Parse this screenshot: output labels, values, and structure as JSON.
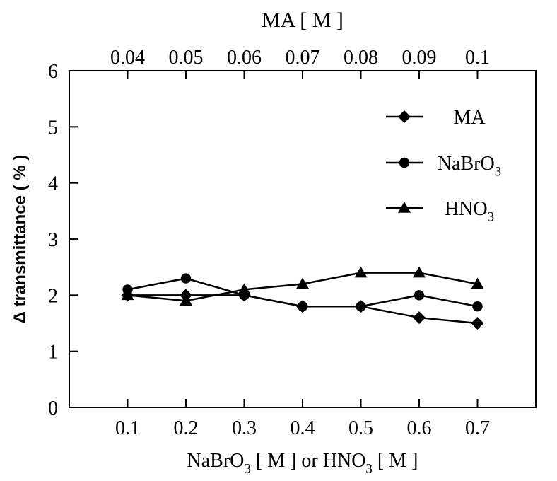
{
  "chart_data": {
    "type": "line",
    "title": "",
    "xlabel": {
      "parts": [
        {
          "text": "NaBrO",
          "sub": false
        },
        {
          "text": "3",
          "sub": true
        },
        {
          "text": " [ M ]  or  HNO",
          "sub": false
        },
        {
          "text": "3",
          "sub": true
        },
        {
          "text": " [ M ]",
          "sub": false
        }
      ]
    },
    "x2label": "MA [ M ]",
    "ylabel": "Δ transmittance ( % )",
    "x": [
      0.1,
      0.2,
      0.3,
      0.4,
      0.5,
      0.6,
      0.7
    ],
    "xlim": [
      0,
      0.8
    ],
    "x_tick_labels": [
      "0.1",
      "0.2",
      "0.3",
      "0.4",
      "0.5",
      "0.6",
      "0.7"
    ],
    "x2_tick_labels": [
      "0.04",
      "0.05",
      "0.06",
      "0.07",
      "0.08",
      "0.09",
      "0.1"
    ],
    "ylim": [
      0,
      6
    ],
    "y_ticks": [
      0,
      1,
      2,
      3,
      4,
      5,
      6
    ],
    "y_tick_labels": [
      "0",
      "1",
      "2",
      "3",
      "4",
      "5",
      "6"
    ],
    "grid": false,
    "legend_position": "top-right",
    "series": [
      {
        "name": "MA",
        "name_parts": [
          {
            "text": "MA",
            "sub": false
          }
        ],
        "marker": "diamond",
        "values": [
          2.0,
          2.0,
          2.0,
          1.8,
          1.8,
          1.6,
          1.5
        ]
      },
      {
        "name": "NaBrO3",
        "name_parts": [
          {
            "text": "NaBrO",
            "sub": false
          },
          {
            "text": "3",
            "sub": true
          }
        ],
        "marker": "circle",
        "values": [
          2.1,
          2.3,
          2.0,
          1.8,
          1.8,
          2.0,
          1.8
        ]
      },
      {
        "name": "HNO3",
        "name_parts": [
          {
            "text": "HNO",
            "sub": false
          },
          {
            "text": "3",
            "sub": true
          }
        ],
        "marker": "triangle",
        "values": [
          2.0,
          1.9,
          2.1,
          2.2,
          2.4,
          2.4,
          2.2
        ]
      }
    ],
    "colors": {
      "line": "#000000",
      "background": "#ffffff"
    }
  }
}
